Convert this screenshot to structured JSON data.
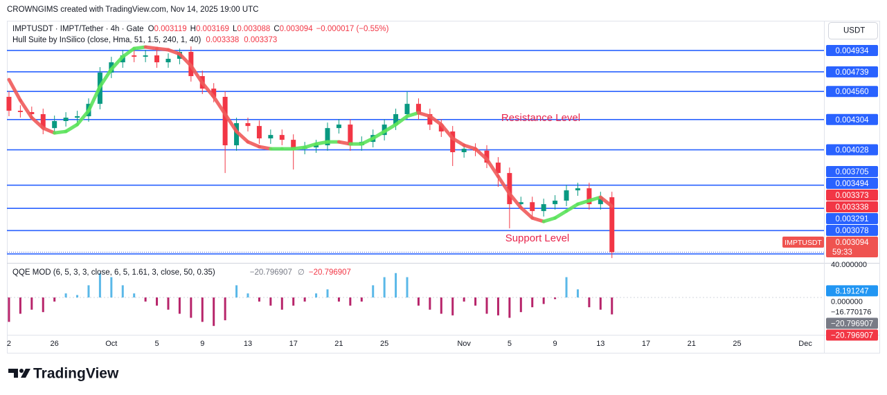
{
  "header": "CROWNGIMS created with TradingView.com, Nov 14, 2025 19:00 UTC",
  "brand": "TradingView",
  "chart_data": {
    "type": "candlestick",
    "symbol": "IMPTUSDT · IMPT/Tether · 4h · Gate",
    "ohlc_labels": [
      "O",
      "H",
      "L",
      "C"
    ],
    "ohlc": [
      0.003119,
      0.003169,
      0.003088,
      0.003094
    ],
    "change": "−0.000017 (−0.55%)",
    "currency": "USDT",
    "x": [
      0,
      1,
      2,
      3,
      4,
      5,
      6,
      7,
      8,
      9,
      10,
      11,
      12,
      13,
      14,
      15,
      16,
      17,
      18,
      19,
      20,
      21,
      22,
      23,
      24,
      25,
      26,
      27,
      28,
      29,
      30,
      31,
      32,
      33,
      34,
      35,
      36,
      37,
      38,
      39,
      40,
      41,
      42,
      43,
      44,
      45,
      46,
      47,
      48,
      49,
      50,
      51,
      52,
      53
    ],
    "xlim": [
      -0.18,
      71.64
    ],
    "xticks": [
      {
        "value": 0,
        "label": "2"
      },
      {
        "value": 4,
        "label": "26"
      },
      {
        "value": 9,
        "label": "Oct"
      },
      {
        "value": 13,
        "label": "5"
      },
      {
        "value": 17,
        "label": "9"
      },
      {
        "value": 21,
        "label": "13"
      },
      {
        "value": 25,
        "label": "17"
      },
      {
        "value": 29,
        "label": "21"
      },
      {
        "value": 33,
        "label": "25"
      },
      {
        "value": 40,
        "label": "Nov"
      },
      {
        "value": 44,
        "label": "5"
      },
      {
        "value": 48,
        "label": "9"
      },
      {
        "value": 52,
        "label": "13"
      },
      {
        "value": 56,
        "label": "17"
      },
      {
        "value": 60,
        "label": "21"
      },
      {
        "value": 64,
        "label": "25"
      },
      {
        "value": 70,
        "label": "Dec"
      }
    ],
    "open": [
      0.004511,
      0.004384,
      0.004372,
      0.004353,
      0.004226,
      0.00429,
      0.004321,
      0.004334,
      0.004447,
      0.004732,
      0.004826,
      0.004889,
      0.004877,
      0.004889,
      0.004826,
      0.004858,
      0.004921,
      0.0047,
      0.004586,
      0.004511,
      0.004069,
      0.004271,
      0.004245,
      0.004132,
      0.004163,
      0.004119,
      0.004037,
      0.00405,
      0.004069,
      0.004226,
      0.004258,
      0.004069,
      0.0041,
      0.004163,
      0.004258,
      0.004353,
      0.004447,
      0.004353,
      0.004258,
      0.004195,
      0.004006,
      0.004037,
      0.00402,
      0.003911,
      0.003816,
      0.003532,
      0.00355,
      0.003469,
      0.003532,
      0.003564,
      0.003658,
      0.003677,
      0.003532,
      0.003595
    ],
    "high": [
      0.004561,
      0.004434,
      0.004422,
      0.004403,
      0.00434,
      0.004371,
      0.004384,
      0.004497,
      0.004782,
      0.004876,
      0.004939,
      0.004939,
      0.004939,
      0.004939,
      0.004908,
      0.004952,
      0.004971,
      0.00475,
      0.004636,
      0.004561,
      0.004321,
      0.004321,
      0.004295,
      0.004213,
      0.004213,
      0.004169,
      0.0041,
      0.004119,
      0.004276,
      0.004308,
      0.004308,
      0.00415,
      0.004213,
      0.004308,
      0.004403,
      0.00456,
      0.004497,
      0.004403,
      0.004308,
      0.004245,
      0.004087,
      0.004087,
      0.00407,
      0.003961,
      0.003866,
      0.0036,
      0.0036,
      0.003582,
      0.003614,
      0.003708,
      0.003727,
      0.003727,
      0.003645,
      0.003645
    ],
    "low": [
      0.004334,
      0.004322,
      0.004303,
      0.00417,
      0.004176,
      0.00424,
      0.004271,
      0.004284,
      0.004397,
      0.004682,
      0.004776,
      0.004827,
      0.004827,
      0.004776,
      0.004776,
      0.004808,
      0.00465,
      0.004536,
      0.004461,
      0.003816,
      0.004019,
      0.004195,
      0.004082,
      0.004082,
      0.004069,
      0.003848,
      0.003987,
      0.004,
      0.004019,
      0.004176,
      0.004019,
      0.004019,
      0.00405,
      0.004113,
      0.004208,
      0.004303,
      0.004303,
      0.004208,
      0.004145,
      0.00388,
      0.003956,
      0.00397,
      0.003861,
      0.00369,
      0.003311,
      0.003482,
      0.003419,
      0.003419,
      0.003482,
      0.003514,
      0.003608,
      0.003482,
      0.003482,
      0.00304
    ],
    "close": [
      0.004384,
      0.004372,
      0.004353,
      0.004226,
      0.00429,
      0.004321,
      0.004334,
      0.004447,
      0.004732,
      0.004826,
      0.004889,
      0.004877,
      0.004889,
      0.004826,
      0.004858,
      0.004921,
      0.0047,
      0.004586,
      0.004511,
      0.004069,
      0.004271,
      0.004245,
      0.004132,
      0.004163,
      0.004119,
      0.004037,
      0.00405,
      0.004069,
      0.004226,
      0.004258,
      0.004069,
      0.0041,
      0.004163,
      0.004258,
      0.004353,
      0.004447,
      0.004353,
      0.004258,
      0.004195,
      0.004006,
      0.004037,
      0.00402,
      0.003911,
      0.003816,
      0.003532,
      0.00355,
      0.003469,
      0.003532,
      0.003564,
      0.003658,
      0.003677,
      0.003532,
      0.003595,
      0.003094
    ],
    "up_color": "#089981",
    "down_color": "#f23645",
    "ylim": [
      0.003009,
      0.005205
    ],
    "levels": [
      0.004934,
      0.004739,
      {
        "value": 0.00456,
        "label": "0.004560"
      },
      0.004304,
      0.004028,
      0.003705,
      0.003494,
      0.003291,
      0.003078
    ],
    "level_color": "#2962ff",
    "last_price_tag": {
      "symbol": "IMPTUSDT",
      "countdown": "59:33",
      "color": "#ef5350"
    },
    "annotations": [
      "Resistance Level",
      "Support Level"
    ],
    "hull": {
      "title": "Hull Suite by InSilico (close, Hma, 51, 1.5, 240, 1, 40)",
      "values": [
        0.004668,
        0.004479,
        0.004321,
        0.004226,
        0.004182,
        0.004195,
        0.004258,
        0.004384,
        0.004605,
        0.004763,
        0.004877,
        0.004952,
        0.004965,
        0.004952,
        0.00494,
        0.004902,
        0.004795,
        0.004637,
        0.004511,
        0.004353,
        0.004195,
        0.0041,
        0.004056,
        0.004037,
        0.004037,
        0.004037,
        0.00405,
        0.004081,
        0.0041,
        0.0041,
        0.004081,
        0.004081,
        0.004132,
        0.004195,
        0.004258,
        0.004334,
        0.004365,
        0.004334,
        0.004258,
        0.004132,
        0.004069,
        0.004037,
        0.003942,
        0.003785,
        0.003627,
        0.0035,
        0.003406,
        0.003374,
        0.003406,
        0.003469,
        0.003532,
        0.003564,
        0.003595,
        0.003513
      ],
      "last": [
        0.003338,
        0.003373
      ],
      "up_color": "#5be35b",
      "down_color": "#f05a5a",
      "tag_color": "#f23645"
    },
    "qqe": {
      "title": "QQE MOD (6, 5, 3, 3, close, 6, 5, 1.61, 3, close, 50, 0.35)",
      "readout": [
        "−20.796907",
        "∅",
        "−20.796907"
      ],
      "values": [
        -30,
        -20,
        -15,
        -18,
        -5,
        5,
        3,
        15,
        30,
        25,
        15,
        5,
        -5,
        -10,
        -15,
        -20,
        -25,
        -30,
        -35,
        -28,
        15,
        5,
        -5,
        -10,
        -15,
        -10,
        -5,
        5,
        10,
        -5,
        -10,
        -5,
        15,
        25,
        30,
        25,
        -10,
        -15,
        -20,
        -22,
        -5,
        -10,
        -20,
        -22,
        -25,
        -18,
        -12,
        -8,
        -2,
        25,
        10,
        -12,
        -15,
        -20.8
      ],
      "ylim": [
        -45.9,
        42.55
      ],
      "yticks": [
        {
          "value": 40,
          "label": "40.000000"
        },
        {
          "value": 0,
          "label": "0.000000"
        },
        {
          "value": -16.770176,
          "label": "−16.770176"
        }
      ],
      "tags": [
        {
          "value": 8.191247,
          "color": "#2196f3"
        },
        {
          "value": -20.796907,
          "label": "−20.796907",
          "color": "#787b86"
        },
        {
          "value": -20.796907,
          "label": "−20.796907",
          "color": "#f23645"
        }
      ],
      "up_color": "#5ab8e8",
      "down_color": "#b7246a"
    }
  }
}
